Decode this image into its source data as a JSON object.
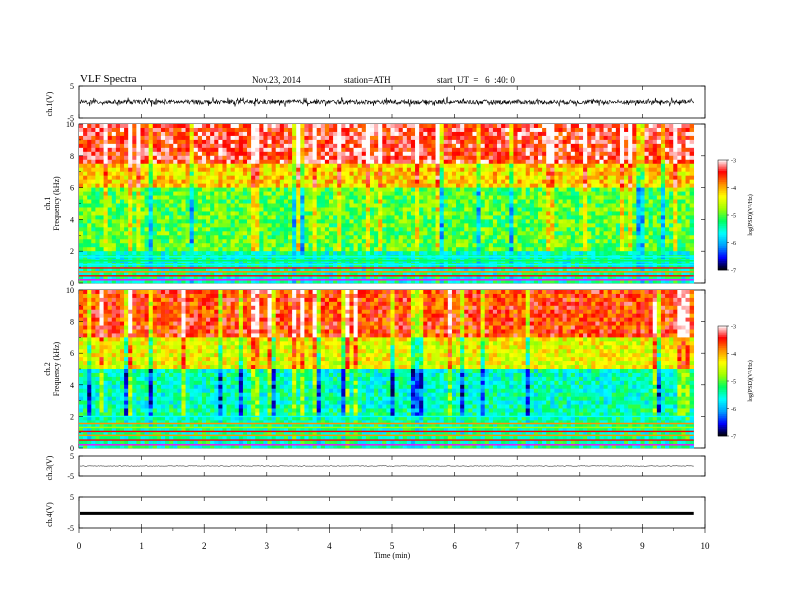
{
  "header": {
    "title": "VLF Spectra",
    "date": "Nov.23, 2014",
    "station": "station=ATH",
    "start": "start  UT  =   6  :40: 0"
  },
  "chart_data": [
    {
      "id": "ch1_waveform",
      "type": "line",
      "ylabel": "ch.1(V)",
      "ylim": [
        -5,
        5
      ],
      "yticks": [
        -5,
        5
      ],
      "xlim": [
        0,
        10
      ],
      "x_end_min": 9.82,
      "series": [
        {
          "values_range": [
            -1.7,
            1.3
          ],
          "baseline": 0
        }
      ]
    },
    {
      "id": "ch1_spectrogram",
      "type": "heatmap",
      "ylabel_channel": "ch.1",
      "ylabel": "Frequency  (kHz)",
      "ylim": [
        0,
        10
      ],
      "yticks": [
        "0",
        "2",
        "4",
        "6",
        "8",
        "10"
      ],
      "xlim": [
        0,
        10
      ],
      "x_end_min": 9.82,
      "color_scale": {
        "label": "log(PSD)(V²/Hz)",
        "range": [
          -7,
          -3
        ],
        "ticks": [
          "-3",
          "-4",
          "-5",
          "-6",
          "-7"
        ]
      },
      "bands": [
        {
          "freq_khz": [
            0,
            2
          ],
          "level": -5.5,
          "note": "narrowband transmitter lines"
        },
        {
          "freq_khz": [
            2,
            6
          ],
          "level": -5.0
        },
        {
          "freq_khz": [
            6,
            7.5
          ],
          "level": -4.2
        },
        {
          "freq_khz": [
            7.5,
            10
          ],
          "level": -3.4
        }
      ]
    },
    {
      "id": "ch2_spectrogram",
      "type": "heatmap",
      "ylabel_channel": "ch.2",
      "ylabel": "Frequency  (kHz)",
      "ylim": [
        0,
        10
      ],
      "yticks": [
        "0",
        "2",
        "4",
        "6",
        "8",
        "10"
      ],
      "xlim": [
        0,
        10
      ],
      "x_end_min": 9.82,
      "color_scale": {
        "label": "log(PSD)(V²/Hz)",
        "range": [
          -7,
          -3
        ],
        "ticks": [
          "-3",
          "-4",
          "-5",
          "-6",
          "-7"
        ]
      },
      "bands": [
        {
          "freq_khz": [
            0,
            2.5
          ],
          "level": -5.4,
          "note": "narrowband transmitter lines"
        },
        {
          "freq_khz": [
            2.5,
            5
          ],
          "level": -5.5
        },
        {
          "freq_khz": [
            5,
            7
          ],
          "level": -4.4
        },
        {
          "freq_khz": [
            7,
            10
          ],
          "level": -3.6
        }
      ]
    },
    {
      "id": "ch3_waveform",
      "type": "line",
      "ylabel": "ch.3(V)",
      "ylim": [
        -5,
        5
      ],
      "yticks": [
        "5",
        "-5"
      ],
      "xlim": [
        0,
        10
      ],
      "x_end_min": 9.82,
      "series": [
        {
          "values_range": [
            -0.3,
            0.3
          ],
          "baseline": 0
        }
      ]
    },
    {
      "id": "ch4_waveform",
      "type": "line",
      "ylabel": "ch.4(V)",
      "ylim": [
        -5,
        5
      ],
      "yticks": [
        "5",
        "-5"
      ],
      "xlim": [
        0,
        10
      ],
      "x_end_min": 9.82,
      "series": [
        {
          "values_range": [
            -0.2,
            0.2
          ],
          "baseline": 0
        }
      ]
    }
  ],
  "xaxis": {
    "label": "Time  (min)",
    "ticks": [
      "0",
      "1",
      "2",
      "3",
      "4",
      "5",
      "6",
      "7",
      "8",
      "9",
      "10"
    ]
  },
  "colors": {
    "colormap": [
      "#000000",
      "#0000ff",
      "#00a0ff",
      "#00ffff",
      "#00ff60",
      "#a0ff00",
      "#ffff00",
      "#ff9000",
      "#ff0000",
      "#ffffff"
    ]
  }
}
